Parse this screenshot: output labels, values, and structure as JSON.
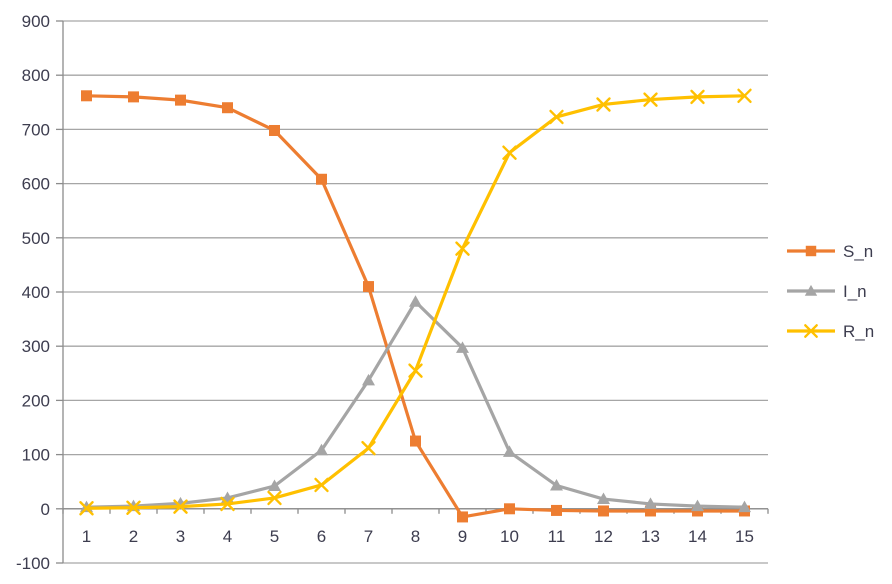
{
  "chart_data": {
    "type": "line",
    "title": "",
    "xlabel": "",
    "ylabel": "",
    "grid": true,
    "legend_position": "right",
    "ylim": [
      -100,
      900
    ],
    "ytick_step": 100,
    "yticks": [
      900,
      800,
      700,
      600,
      500,
      400,
      300,
      200,
      100,
      0,
      -100
    ],
    "x_labels": [
      "1",
      "2",
      "3",
      "4",
      "5",
      "6",
      "7",
      "8",
      "9",
      "10",
      "11",
      "12",
      "13",
      "14",
      "15"
    ],
    "series": [
      {
        "name": "S_n",
        "color": "#ED7D31",
        "marker": "square",
        "values": [
          762,
          760,
          754,
          740,
          698,
          608,
          410,
          125,
          -15,
          0,
          -3,
          -4,
          -4,
          -4,
          -4
        ]
      },
      {
        "name": "I_n",
        "color": "#A5A5A5",
        "marker": "triangle",
        "values": [
          3,
          5,
          10,
          20,
          42,
          108,
          237,
          382,
          297,
          105,
          43,
          18,
          9,
          5,
          3
        ]
      },
      {
        "name": "R_n",
        "color": "#FFC000",
        "marker": "x",
        "values": [
          1,
          2,
          4,
          9,
          20,
          44,
          112,
          255,
          480,
          657,
          723,
          746,
          755,
          760,
          762
        ]
      }
    ]
  },
  "style": {
    "background": "#FFFFFF",
    "gridline_color": "#A6A6A6",
    "axis_line_color": "#8C8C8C",
    "tick_label_color": "#3D3D4F",
    "legend_text_color": "#3D3D4F"
  }
}
